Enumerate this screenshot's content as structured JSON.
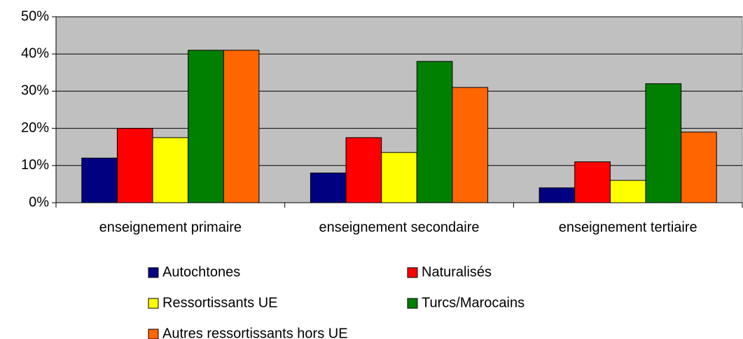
{
  "chart_data": {
    "type": "bar",
    "categories": [
      "enseignement primaire",
      "enseignement secondaire",
      "enseignement tertiaire"
    ],
    "series": [
      {
        "name": "Autochtones",
        "color": "#000080",
        "values": [
          12,
          8,
          4
        ]
      },
      {
        "name": "Naturalisés",
        "color": "#ff0000",
        "values": [
          20,
          17.5,
          11
        ]
      },
      {
        "name": "Ressortissants UE",
        "color": "#ffff00",
        "values": [
          17.5,
          13.5,
          6
        ]
      },
      {
        "name": "Turcs/Marocains",
        "color": "#008000",
        "values": [
          41,
          38,
          32
        ]
      },
      {
        "name": "Autres ressortissants hors UE",
        "color": "#ff6600",
        "values": [
          41,
          31,
          19
        ]
      }
    ],
    "ylim": [
      0,
      50
    ],
    "yticks": [
      {
        "value": 0,
        "label": "0%"
      },
      {
        "value": 10,
        "label": "10%"
      },
      {
        "value": 20,
        "label": "20%"
      },
      {
        "value": 30,
        "label": "30%"
      },
      {
        "value": 40,
        "label": "40%"
      },
      {
        "value": 50,
        "label": "50%"
      }
    ],
    "grid": true,
    "plot_background": "#c0c0c0"
  }
}
